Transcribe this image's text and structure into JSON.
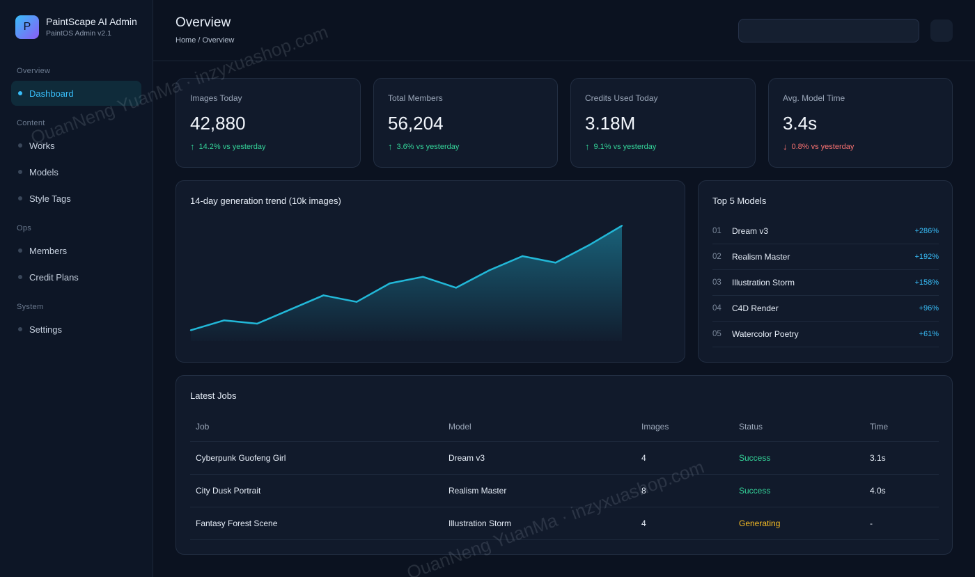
{
  "brand": {
    "logo_letter": "P",
    "title": "PaintScape AI Admin",
    "subtitle": "PaintOS Admin v2.1"
  },
  "sidebar": {
    "sections": [
      {
        "label": "Overview",
        "items": [
          {
            "label": "Dashboard",
            "active": true
          }
        ]
      },
      {
        "label": "Content",
        "items": [
          {
            "label": "Works"
          },
          {
            "label": "Models"
          },
          {
            "label": "Style Tags"
          }
        ]
      },
      {
        "label": "Ops",
        "items": [
          {
            "label": "Members"
          },
          {
            "label": "Credit Plans"
          }
        ]
      },
      {
        "label": "System",
        "items": [
          {
            "label": "Settings"
          }
        ]
      }
    ]
  },
  "header": {
    "title": "Overview",
    "breadcrumb": "Home / Overview",
    "search_value": ""
  },
  "stats": [
    {
      "label": "Images Today",
      "value": "42,880",
      "delta": "14.2% vs yesterday",
      "direction": "up"
    },
    {
      "label": "Total Members",
      "value": "56,204",
      "delta": "3.6% vs yesterday",
      "direction": "up"
    },
    {
      "label": "Credits Used Today",
      "value": "3.18M",
      "delta": "9.1% vs yesterday",
      "direction": "up"
    },
    {
      "label": "Avg. Model Time",
      "value": "3.4s",
      "delta": "0.8% vs yesterday",
      "direction": "down"
    }
  ],
  "trend": {
    "title": "14-day generation trend (10k images)"
  },
  "top_models": {
    "title": "Top 5 Models",
    "items": [
      {
        "rank": "01",
        "name": "Dream v3",
        "growth": "+286%"
      },
      {
        "rank": "02",
        "name": "Realism Master",
        "growth": "+192%"
      },
      {
        "rank": "03",
        "name": "Illustration Storm",
        "growth": "+158%"
      },
      {
        "rank": "04",
        "name": "C4D Render",
        "growth": "+96%"
      },
      {
        "rank": "05",
        "name": "Watercolor Poetry",
        "growth": "+61%"
      }
    ]
  },
  "jobs": {
    "title": "Latest Jobs",
    "columns": [
      "Job",
      "Model",
      "Images",
      "Status",
      "Time"
    ],
    "rows": [
      {
        "job": "Cyberpunk Guofeng Girl",
        "model": "Dream v3",
        "images": "4",
        "status": "Success",
        "time": "3.1s"
      },
      {
        "job": "City Dusk Portrait",
        "model": "Realism Master",
        "images": "8",
        "status": "Success",
        "time": "4.0s"
      },
      {
        "job": "Fantasy Forest Scene",
        "model": "Illustration Storm",
        "images": "4",
        "status": "Generating",
        "time": "-"
      }
    ]
  },
  "chart_data": {
    "type": "area",
    "title": "14-day generation trend (10k images)",
    "x": [
      1,
      2,
      3,
      4,
      5,
      6,
      7,
      8,
      9,
      10,
      11,
      12,
      13,
      14
    ],
    "values": [
      1.0,
      1.9,
      1.6,
      2.9,
      4.2,
      3.6,
      5.3,
      5.9,
      4.9,
      6.5,
      7.8,
      7.2,
      8.8,
      10.6
    ],
    "ylim": [
      0,
      11
    ],
    "grid": false,
    "legend": "none",
    "line_color": "#22b8d8"
  },
  "watermark": {
    "text": "QuanNeng YuanMa · inzyxuashop.com"
  },
  "colors": {
    "accent": "#38bdf8",
    "success": "#34d399",
    "warning": "#fbbf24",
    "danger": "#f87171"
  }
}
